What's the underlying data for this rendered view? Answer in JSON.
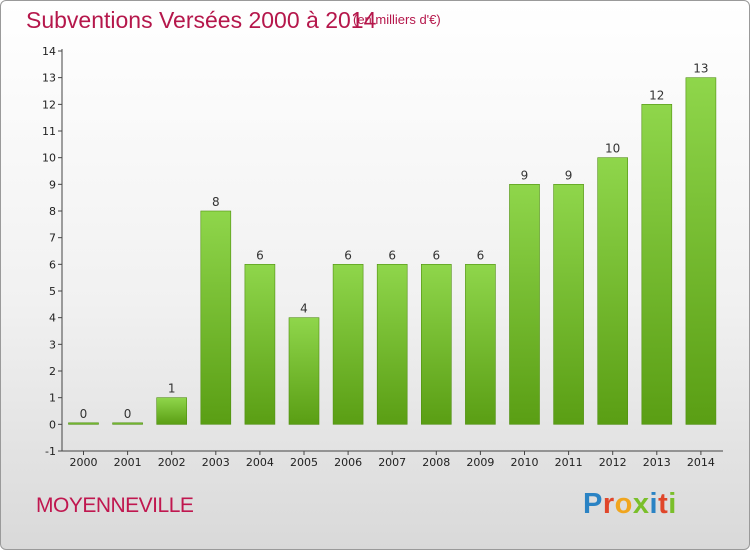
{
  "header": {
    "title": "Subventions Versées 2000 à 2014",
    "unit": "(en milliers d'€)"
  },
  "footer": {
    "commune": "MOYENNEVILLE",
    "logo_text": "Proxiti",
    "logo_colors": [
      "#2a83c4",
      "#e0462a",
      "#f0a51e",
      "#7abf2a",
      "#2a83c4",
      "#e0462a",
      "#7abf2a"
    ]
  },
  "colors": {
    "title": "#b5174b",
    "bar_top": "#8fd64b",
    "bar_bottom": "#5a9e14",
    "bar_edge": "#4f8f10"
  },
  "chart_data": {
    "type": "bar",
    "title": "Subventions Versées 2000 à 2014",
    "subtitle": "(en milliers d'€)",
    "categories": [
      "2000",
      "2001",
      "2002",
      "2003",
      "2004",
      "2005",
      "2006",
      "2007",
      "2008",
      "2009",
      "2010",
      "2011",
      "2012",
      "2013",
      "2014"
    ],
    "values": [
      0,
      0,
      1,
      8,
      6,
      4,
      6,
      6,
      6,
      6,
      9,
      9,
      10,
      12,
      13
    ],
    "yticks": [
      -1,
      0,
      1,
      2,
      3,
      4,
      5,
      6,
      7,
      8,
      9,
      10,
      11,
      12,
      13,
      14
    ],
    "ylim": [
      -1,
      14
    ],
    "grid": false,
    "legend": "none"
  }
}
